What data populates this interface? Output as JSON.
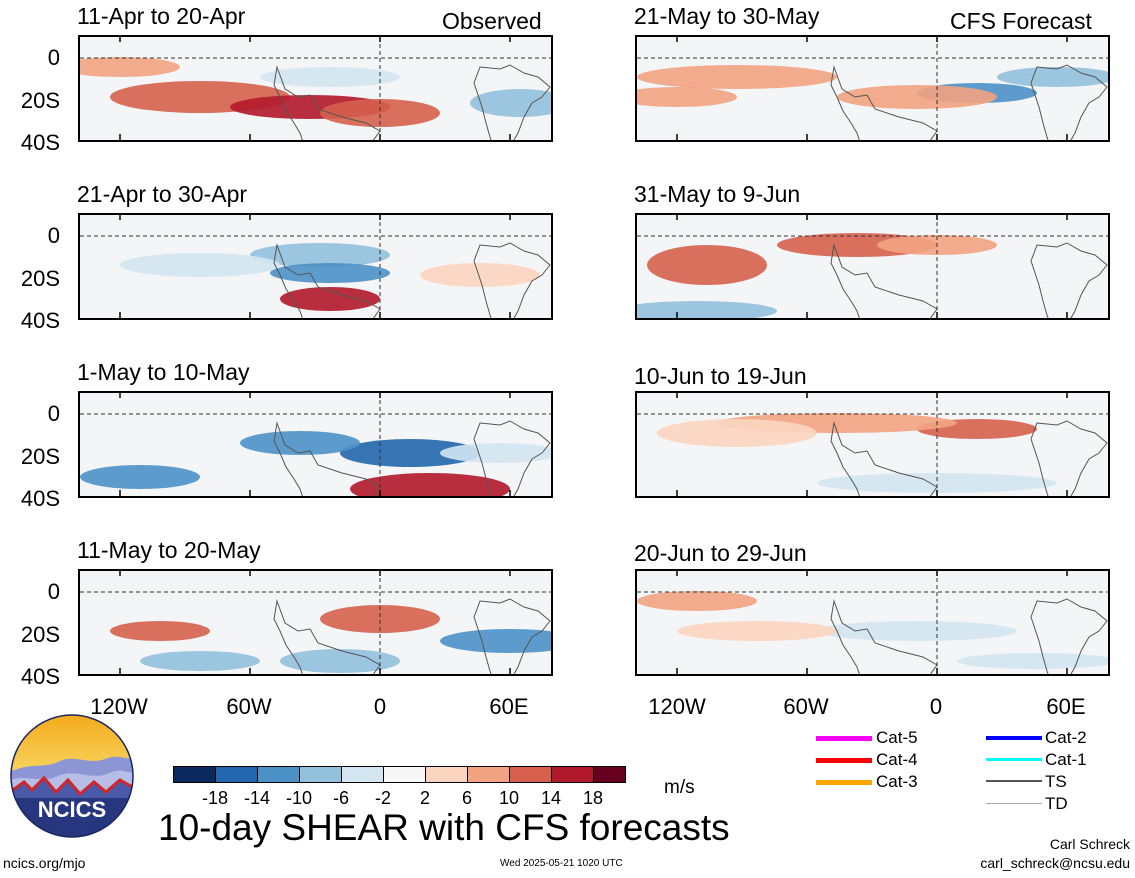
{
  "columns": {
    "left_header": "Observed",
    "right_header": "CFS Forecast"
  },
  "panels": {
    "observed": [
      {
        "title": "11-Apr to 20-Apr"
      },
      {
        "title": "21-Apr to 30-Apr"
      },
      {
        "title": "1-May to 10-May"
      },
      {
        "title": "11-May to 20-May"
      }
    ],
    "forecast": [
      {
        "title": "21-May to 30-May"
      },
      {
        "title": "31-May to 9-Jun"
      },
      {
        "title": "10-Jun to 19-Jun"
      },
      {
        "title": "20-Jun to 29-Jun"
      }
    ]
  },
  "axes": {
    "lat_labels": [
      "0",
      "20S",
      "40S"
    ],
    "lon_labels": [
      "120W",
      "60W",
      "0",
      "60E"
    ]
  },
  "colorbar": {
    "colors": [
      "#0a2a5e",
      "#2266ad",
      "#4b91c6",
      "#92c0dd",
      "#d3e6f2",
      "#f7f7f7",
      "#fbd5c0",
      "#f2a381",
      "#d6604d",
      "#b2182b",
      "#67001f"
    ],
    "labels": [
      "-18",
      "-14",
      "-10",
      "-6",
      "-2",
      "2",
      "6",
      "10",
      "14",
      "18"
    ],
    "units": "m/s"
  },
  "legend": {
    "items": [
      {
        "label": "Cat-5",
        "color": "#ff00ff"
      },
      {
        "label": "Cat-4",
        "color": "#ff0000"
      },
      {
        "label": "Cat-3",
        "color": "#ffa500"
      },
      {
        "label": "Cat-2",
        "color": "#0000ff"
      },
      {
        "label": "Cat-1",
        "color": "#00ffff"
      },
      {
        "label": "TS",
        "color": "#555555"
      },
      {
        "label": "TD",
        "color": "#aaaaaa"
      }
    ]
  },
  "logo": {
    "text": "NCICS"
  },
  "footer": {
    "title": "10-day SHEAR with CFS forecasts",
    "site": "ncics.org/mjo",
    "timestamp": "Wed 2025-05-21 1020 UTC",
    "author": "Carl Schreck",
    "email": "carl_schreck@ncsu.edu"
  }
}
